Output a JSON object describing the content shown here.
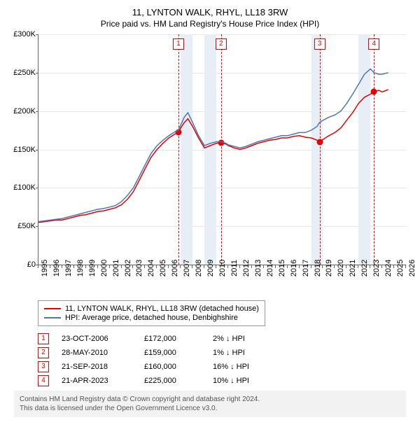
{
  "title": "11, LYNTON WALK, RHYL, LL18 3RW",
  "subtitle": "Price paid vs. HM Land Registry's House Price Index (HPI)",
  "chart": {
    "type": "line",
    "xlim": [
      1995,
      2026
    ],
    "ylim": [
      0,
      300000
    ],
    "ytick_step": 50000,
    "yticks": [
      "£0",
      "£50K",
      "£100K",
      "£150K",
      "£200K",
      "£250K",
      "£300K"
    ],
    "xticks": [
      1995,
      1996,
      1997,
      1998,
      1999,
      2000,
      2001,
      2002,
      2003,
      2004,
      2005,
      2006,
      2007,
      2008,
      2009,
      2010,
      2011,
      2012,
      2013,
      2014,
      2015,
      2016,
      2017,
      2018,
      2019,
      2020,
      2021,
      2022,
      2023,
      2024,
      2025,
      2026
    ],
    "background_color": "#ffffff",
    "grid_color": "#e6e6e6",
    "band_color": "#e8eef6",
    "marker_line_color": "#e60000",
    "series": [
      {
        "name": "price_paid",
        "color": "#e60000",
        "width": 1.5,
        "points": [
          [
            1995.0,
            55000
          ],
          [
            1995.5,
            56000
          ],
          [
            1996.0,
            57000
          ],
          [
            1996.5,
            58000
          ],
          [
            1997.0,
            58000
          ],
          [
            1997.5,
            60000
          ],
          [
            1998.0,
            62000
          ],
          [
            1998.5,
            64000
          ],
          [
            1999.0,
            65000
          ],
          [
            1999.5,
            67000
          ],
          [
            2000.0,
            69000
          ],
          [
            2000.5,
            70000
          ],
          [
            2001.0,
            72000
          ],
          [
            2001.5,
            74000
          ],
          [
            2002.0,
            78000
          ],
          [
            2002.5,
            85000
          ],
          [
            2003.0,
            95000
          ],
          [
            2003.5,
            110000
          ],
          [
            2004.0,
            125000
          ],
          [
            2004.5,
            140000
          ],
          [
            2005.0,
            150000
          ],
          [
            2005.5,
            158000
          ],
          [
            2006.0,
            165000
          ],
          [
            2006.5,
            170000
          ],
          [
            2006.8,
            172000
          ],
          [
            2007.0,
            178000
          ],
          [
            2007.3,
            185000
          ],
          [
            2007.6,
            190000
          ],
          [
            2008.0,
            180000
          ],
          [
            2008.5,
            165000
          ],
          [
            2009.0,
            152000
          ],
          [
            2009.5,
            155000
          ],
          [
            2010.0,
            158000
          ],
          [
            2010.4,
            159000
          ],
          [
            2010.8,
            157000
          ],
          [
            2011.0,
            155000
          ],
          [
            2011.5,
            152000
          ],
          [
            2012.0,
            150000
          ],
          [
            2012.5,
            152000
          ],
          [
            2013.0,
            155000
          ],
          [
            2013.5,
            158000
          ],
          [
            2014.0,
            160000
          ],
          [
            2014.5,
            162000
          ],
          [
            2015.0,
            163000
          ],
          [
            2015.5,
            165000
          ],
          [
            2016.0,
            165000
          ],
          [
            2016.5,
            167000
          ],
          [
            2017.0,
            168000
          ],
          [
            2017.5,
            166000
          ],
          [
            2018.0,
            165000
          ],
          [
            2018.5,
            162000
          ],
          [
            2018.7,
            160000
          ],
          [
            2019.0,
            163000
          ],
          [
            2019.5,
            168000
          ],
          [
            2020.0,
            172000
          ],
          [
            2020.5,
            178000
          ],
          [
            2021.0,
            188000
          ],
          [
            2021.5,
            198000
          ],
          [
            2022.0,
            210000
          ],
          [
            2022.5,
            218000
          ],
          [
            2023.0,
            222000
          ],
          [
            2023.3,
            225000
          ],
          [
            2023.7,
            227000
          ],
          [
            2024.0,
            225000
          ],
          [
            2024.5,
            228000
          ]
        ]
      },
      {
        "name": "hpi",
        "color": "#4878b8",
        "width": 1.5,
        "points": [
          [
            1995.0,
            56000
          ],
          [
            1995.5,
            57000
          ],
          [
            1996.0,
            58000
          ],
          [
            1996.5,
            59000
          ],
          [
            1997.0,
            60000
          ],
          [
            1997.5,
            62000
          ],
          [
            1998.0,
            64000
          ],
          [
            1998.5,
            66000
          ],
          [
            1999.0,
            68000
          ],
          [
            1999.5,
            70000
          ],
          [
            2000.0,
            72000
          ],
          [
            2000.5,
            73000
          ],
          [
            2001.0,
            75000
          ],
          [
            2001.5,
            77000
          ],
          [
            2002.0,
            82000
          ],
          [
            2002.5,
            90000
          ],
          [
            2003.0,
            100000
          ],
          [
            2003.5,
            115000
          ],
          [
            2004.0,
            130000
          ],
          [
            2004.5,
            145000
          ],
          [
            2005.0,
            155000
          ],
          [
            2005.5,
            162000
          ],
          [
            2006.0,
            168000
          ],
          [
            2006.5,
            173000
          ],
          [
            2006.8,
            175000
          ],
          [
            2007.0,
            182000
          ],
          [
            2007.3,
            192000
          ],
          [
            2007.6,
            198000
          ],
          [
            2008.0,
            185000
          ],
          [
            2008.5,
            168000
          ],
          [
            2009.0,
            155000
          ],
          [
            2009.5,
            158000
          ],
          [
            2010.0,
            160000
          ],
          [
            2010.4,
            160000
          ],
          [
            2010.8,
            158000
          ],
          [
            2011.0,
            156000
          ],
          [
            2011.5,
            154000
          ],
          [
            2012.0,
            152000
          ],
          [
            2012.5,
            154000
          ],
          [
            2013.0,
            157000
          ],
          [
            2013.5,
            160000
          ],
          [
            2014.0,
            162000
          ],
          [
            2014.5,
            164000
          ],
          [
            2015.0,
            166000
          ],
          [
            2015.5,
            168000
          ],
          [
            2016.0,
            168000
          ],
          [
            2016.5,
            170000
          ],
          [
            2017.0,
            172000
          ],
          [
            2017.5,
            172000
          ],
          [
            2018.0,
            175000
          ],
          [
            2018.5,
            180000
          ],
          [
            2018.7,
            185000
          ],
          [
            2019.0,
            188000
          ],
          [
            2019.5,
            192000
          ],
          [
            2020.0,
            195000
          ],
          [
            2020.5,
            200000
          ],
          [
            2021.0,
            210000
          ],
          [
            2021.5,
            222000
          ],
          [
            2022.0,
            235000
          ],
          [
            2022.5,
            248000
          ],
          [
            2023.0,
            255000
          ],
          [
            2023.3,
            250000
          ],
          [
            2023.7,
            248000
          ],
          [
            2024.0,
            248000
          ],
          [
            2024.5,
            250000
          ]
        ]
      }
    ],
    "sale_markers": [
      {
        "index": "1",
        "year": 2006.81,
        "price": 172000
      },
      {
        "index": "2",
        "year": 2010.4,
        "price": 159000
      },
      {
        "index": "3",
        "year": 2018.72,
        "price": 160000
      },
      {
        "index": "4",
        "year": 2023.3,
        "price": 225000
      }
    ],
    "bands": [
      {
        "start": 2007,
        "end": 2008
      },
      {
        "start": 2009,
        "end": 2010
      },
      {
        "start": 2018,
        "end": 2019
      },
      {
        "start": 2022,
        "end": 2023
      }
    ]
  },
  "legend": {
    "items": [
      {
        "color": "#e60000",
        "label": "11, LYNTON WALK, RHYL, LL18 3RW (detached house)"
      },
      {
        "color": "#4878b8",
        "label": "HPI: Average price, detached house, Denbighshire"
      }
    ]
  },
  "sales": [
    {
      "index": "1",
      "date": "23-OCT-2006",
      "price": "£172,000",
      "delta": "2% ↓ HPI"
    },
    {
      "index": "2",
      "date": "28-MAY-2010",
      "price": "£159,000",
      "delta": "1% ↓ HPI"
    },
    {
      "index": "3",
      "date": "21-SEP-2018",
      "price": "£160,000",
      "delta": "16% ↓ HPI"
    },
    {
      "index": "4",
      "date": "21-APR-2023",
      "price": "£225,000",
      "delta": "10% ↓ HPI"
    }
  ],
  "footer": {
    "line1": "Contains HM Land Registry data © Crown copyright and database right 2024.",
    "line2": "This data is licensed under the Open Government Licence v3.0."
  }
}
